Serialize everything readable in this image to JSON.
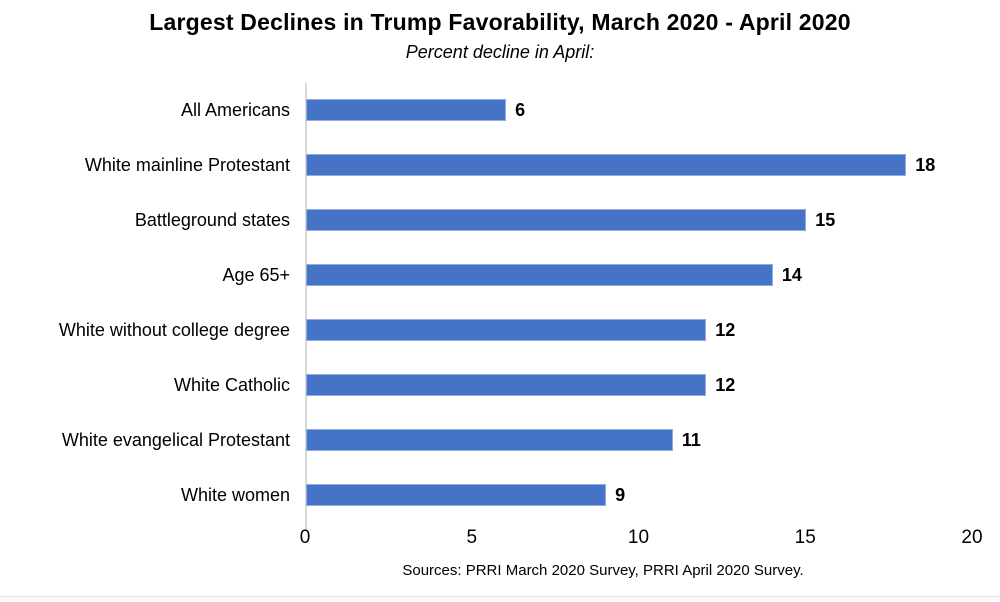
{
  "page": {
    "background": "#ffffff",
    "bottom_border_color": "#e8e5e3"
  },
  "chart_data": {
    "type": "bar",
    "orientation": "horizontal",
    "title": "Largest Declines in Trump Favorability, March 2020 - April 2020",
    "subtitle": "Percent decline in April:",
    "categories": [
      "All Americans",
      "White mainline Protestant",
      "Battleground states",
      "Age 65+",
      "White without college degree",
      "White Catholic",
      "White evangelical Protestant",
      "White women"
    ],
    "values": [
      6,
      18,
      15,
      14,
      12,
      12,
      11,
      9
    ],
    "xlabel": "",
    "ylabel": "",
    "xlim": [
      0,
      20
    ],
    "x_ticks": [
      0,
      5,
      10,
      15,
      20
    ],
    "grid": false,
    "legend": false,
    "value_labels_shown": true,
    "bar_color": "#4573C6",
    "bar_border_color": "#93ACDD",
    "axis_line_color": "#D9D9D9",
    "text_color": "#000000",
    "source": "Sources: PRRI March 2020 Survey, PRRI April 2020 Survey."
  }
}
